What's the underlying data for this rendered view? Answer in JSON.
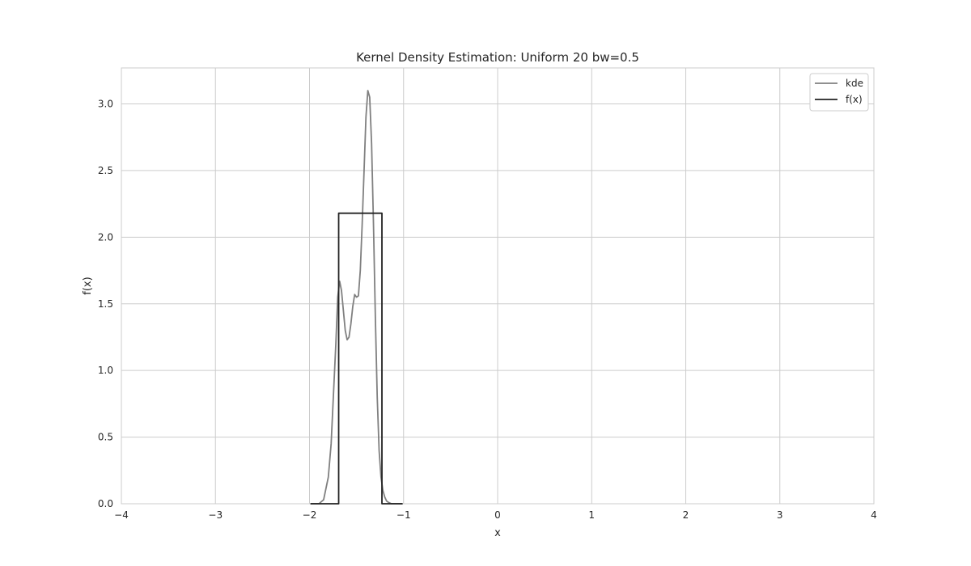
{
  "chart_data": {
    "type": "line",
    "title": "Kernel Density Estimation: Uniform 20 bw=0.5",
    "xlabel": "x",
    "ylabel": "f(x)",
    "xlim": [
      -4,
      4
    ],
    "ylim": [
      0,
      3.27
    ],
    "xticks": [
      -4,
      -3,
      -2,
      -1,
      0,
      1,
      2,
      3,
      4
    ],
    "xtick_labels": [
      "−4",
      "−3",
      "−2",
      "−1",
      "0",
      "1",
      "2",
      "3",
      "4"
    ],
    "yticks": [
      0.0,
      0.5,
      1.0,
      1.5,
      2.0,
      2.5,
      3.0
    ],
    "ytick_labels": [
      "0.0",
      "0.5",
      "1.0",
      "1.5",
      "2.0",
      "2.5",
      "3.0"
    ],
    "grid": true,
    "legend_position": "top-right",
    "series": [
      {
        "name": "kde",
        "color": "#808080",
        "x": [
          -1.99,
          -1.9,
          -1.85,
          -1.8,
          -1.77,
          -1.75,
          -1.72,
          -1.7,
          -1.68,
          -1.66,
          -1.64,
          -1.62,
          -1.6,
          -1.58,
          -1.56,
          -1.54,
          -1.52,
          -1.5,
          -1.48,
          -1.46,
          -1.44,
          -1.42,
          -1.4,
          -1.38,
          -1.36,
          -1.34,
          -1.32,
          -1.3,
          -1.28,
          -1.26,
          -1.24,
          -1.22,
          -1.2,
          -1.18,
          -1.16,
          -1.13,
          -1.1,
          -1.05,
          -1.01
        ],
        "y": [
          0.0,
          0.0,
          0.03,
          0.2,
          0.45,
          0.75,
          1.2,
          1.55,
          1.67,
          1.6,
          1.45,
          1.3,
          1.23,
          1.25,
          1.35,
          1.48,
          1.57,
          1.55,
          1.56,
          1.75,
          2.1,
          2.5,
          2.9,
          3.1,
          3.05,
          2.7,
          2.1,
          1.4,
          0.8,
          0.4,
          0.2,
          0.1,
          0.05,
          0.02,
          0.01,
          0.0,
          0.0,
          0.0,
          0.0
        ]
      },
      {
        "name": "f(x)",
        "color": "#222222",
        "x": [
          -1.99,
          -1.69,
          -1.69,
          -1.23,
          -1.23,
          -1.01
        ],
        "y": [
          0.0,
          0.0,
          2.18,
          2.18,
          0.0,
          0.0
        ]
      }
    ]
  }
}
